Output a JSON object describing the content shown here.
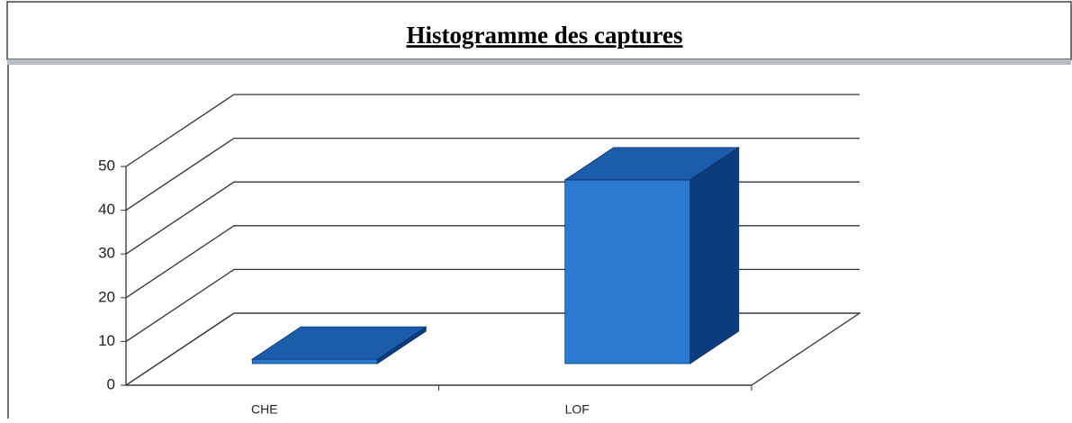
{
  "chart_data": {
    "type": "bar3d",
    "title": "Histogramme des captures",
    "categories": [
      "CHE",
      "LOF"
    ],
    "values": [
      1,
      42
    ],
    "color": "#2a7bd0",
    "ylim": [
      0,
      50
    ],
    "yticks": [
      0,
      10,
      20,
      30,
      40,
      50
    ],
    "grid": true
  }
}
